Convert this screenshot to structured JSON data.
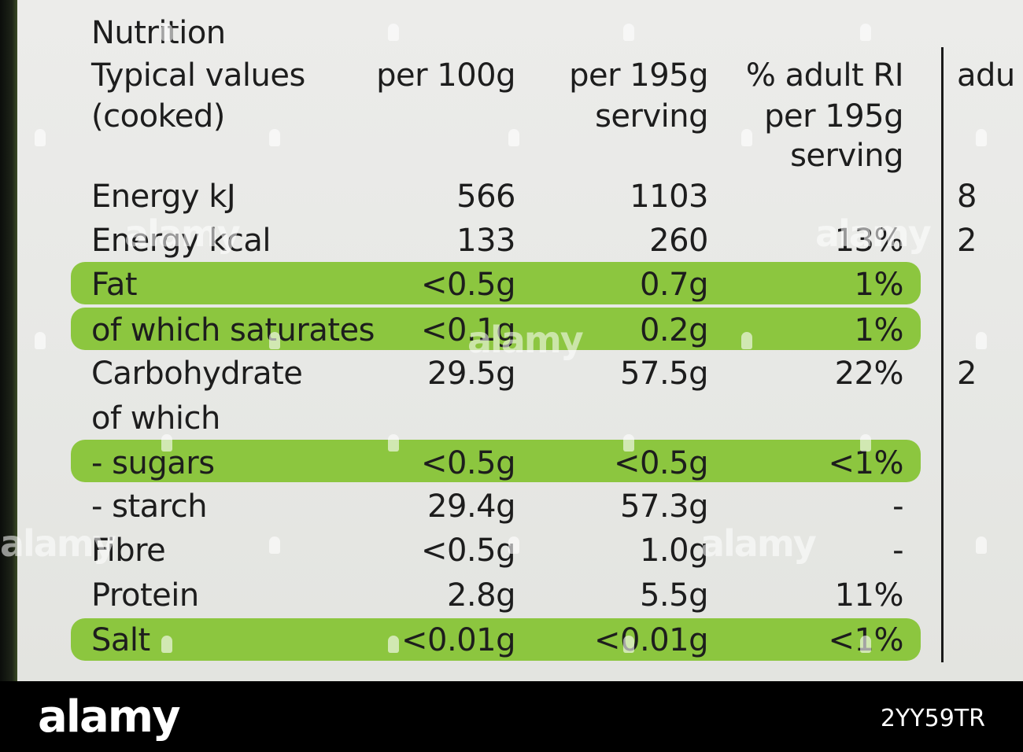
{
  "table": {
    "title": "Nutrition",
    "header": {
      "col0": [
        "Typical values",
        "(cooked)"
      ],
      "col1": [
        "per 100g"
      ],
      "col2": [
        "per 195g",
        "serving"
      ],
      "col3": [
        "% adult RI",
        "per 195g",
        "serving"
      ],
      "col4": [
        "adu"
      ]
    },
    "rows": [
      {
        "label": "Energy kJ",
        "per100": "566",
        "serving": "1103",
        "ri": "",
        "extra": "8"
      },
      {
        "label": "Energy kcal",
        "per100": "133",
        "serving": "260",
        "ri": "13%",
        "extra": "2"
      },
      {
        "label": "Fat",
        "per100": "<0.5g",
        "serving": "0.7g",
        "ri": "1%",
        "extra": ""
      },
      {
        "label": "of which saturates",
        "per100": "<0.1g",
        "serving": "0.2g",
        "ri": "1%",
        "extra": ""
      },
      {
        "label": "Carbohydrate",
        "per100": "29.5g",
        "serving": "57.5g",
        "ri": "22%",
        "extra": "2"
      },
      {
        "label": "of which",
        "per100": "",
        "serving": "",
        "ri": "",
        "extra": ""
      },
      {
        "label": "- sugars",
        "per100": "<0.5g",
        "serving": "<0.5g",
        "ri": "<1%",
        "extra": ""
      },
      {
        "label": "- starch",
        "per100": "29.4g",
        "serving": "57.3g",
        "ri": "-",
        "extra": ""
      },
      {
        "label": "Fibre",
        "per100": "<0.5g",
        "serving": "1.0g",
        "ri": "-",
        "extra": ""
      },
      {
        "label": "Protein",
        "per100": "2.8g",
        "serving": "5.5g",
        "ri": "11%",
        "extra": ""
      },
      {
        "label": "Salt",
        "per100": "<0.01g",
        "serving": "<0.01g",
        "ri": "<1%",
        "extra": ""
      }
    ]
  },
  "colors": {
    "highlight": "#8cc63f",
    "card": "#ebebe9",
    "text": "#1d1d1d"
  },
  "watermark": {
    "text": "alamy",
    "brand": "alamy",
    "image_ref": "2YY59TR"
  }
}
